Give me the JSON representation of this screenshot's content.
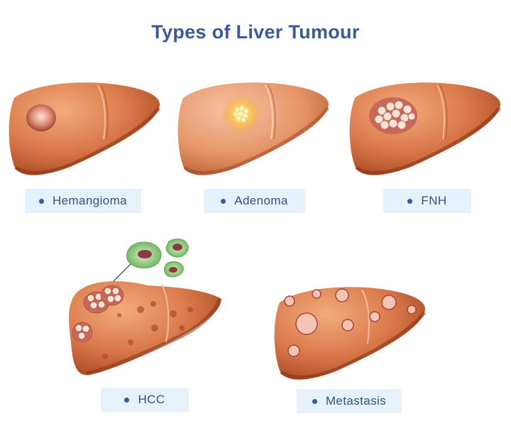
{
  "title": "Types of Liver Tumour",
  "colors": {
    "title": "#3a5a98",
    "label_bg": "#e5f2fb",
    "bullet": "#2e5ca8",
    "liver_light": "#f0a070",
    "liver_dark": "#9a3e1e",
    "tumour_cell": "#7cc06a"
  },
  "types": [
    {
      "label": "Hemangioma"
    },
    {
      "label": "Adenoma"
    },
    {
      "label": "FNH"
    },
    {
      "label": "HCC"
    },
    {
      "label": "Metastasis"
    }
  ]
}
